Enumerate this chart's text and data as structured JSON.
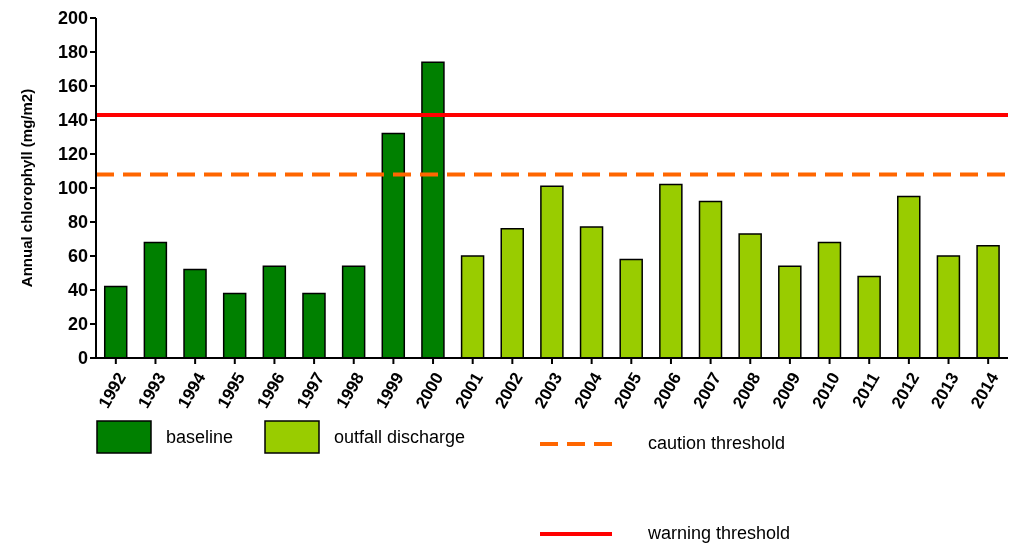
{
  "chart_data": {
    "type": "bar",
    "ylabel": "Annual chlorophyll (mg/m2)",
    "categories": [
      "1992",
      "1993",
      "1994",
      "1995",
      "1996",
      "1997",
      "1998",
      "1999",
      "2000",
      "2001",
      "2002",
      "2003",
      "2004",
      "2005",
      "2006",
      "2007",
      "2008",
      "2009",
      "2010",
      "2011",
      "2012",
      "2013",
      "2014"
    ],
    "stacked": true,
    "series": [
      {
        "name": "baseline",
        "color": "#008000",
        "values": [
          42,
          68,
          52,
          38,
          54,
          38,
          54,
          132,
          174,
          null,
          null,
          null,
          null,
          null,
          null,
          null,
          null,
          null,
          null,
          null,
          null,
          null,
          null
        ]
      },
      {
        "name": "outfall discharge",
        "color": "#99cc00",
        "values": [
          null,
          null,
          null,
          null,
          null,
          null,
          null,
          null,
          null,
          60,
          76,
          101,
          77,
          58,
          102,
          92,
          73,
          54,
          68,
          48,
          95,
          60,
          66
        ]
      }
    ],
    "ylim": [
      0,
      200
    ],
    "yticks": [
      0,
      20,
      40,
      60,
      80,
      100,
      120,
      140,
      160,
      180,
      200
    ],
    "grid": false,
    "legend": "bottom",
    "ref_lines": [
      {
        "axis": "y",
        "value": 108,
        "label": "caution threshold",
        "color": "#ff6600",
        "line_style": "dashed"
      },
      {
        "axis": "y",
        "value": 143,
        "label": "warning threshold",
        "color": "#ff0000",
        "line_style": "solid"
      }
    ]
  }
}
